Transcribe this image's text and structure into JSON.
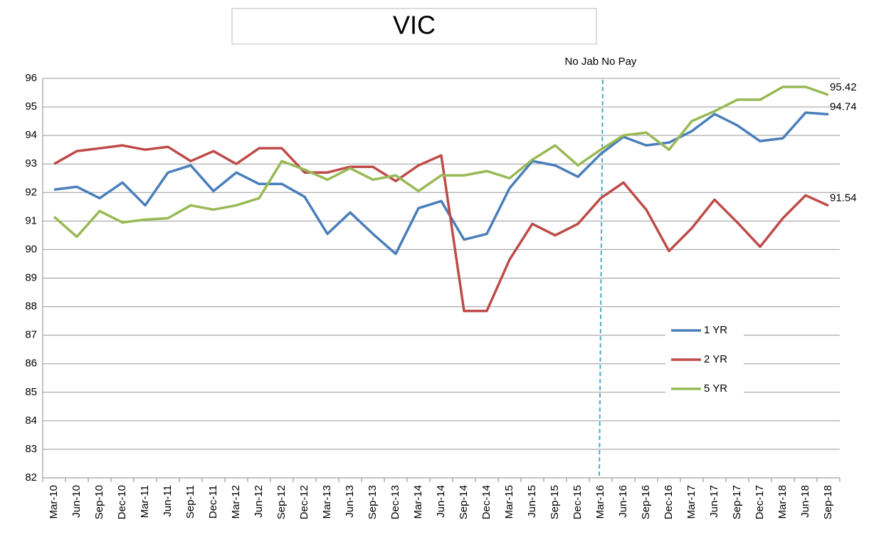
{
  "chart_data": {
    "type": "line",
    "title": "VIC",
    "categories": [
      "Mar-10",
      "Jun-10",
      "Sep-10",
      "Dec-10",
      "Mar-11",
      "Jun-11",
      "Sep-11",
      "Dec-11",
      "Mar-12",
      "Jun-12",
      "Sep-12",
      "Dec-12",
      "Mar-13",
      "Jun-13",
      "Sep-13",
      "Dec-13",
      "Mar-14",
      "Jun-14",
      "Sep-14",
      "Dec-14",
      "Mar-15",
      "Jun-15",
      "Sep-15",
      "Dec-15",
      "Mar-16",
      "Jun-16",
      "Sep-16",
      "Dec-16",
      "Mar-17",
      "Jun-17",
      "Sep-17",
      "Dec-17",
      "Mar-18",
      "Jun-18",
      "Sep-18"
    ],
    "series": [
      {
        "name": "1 YR",
        "color": "#4a7ebb",
        "values": [
          92.1,
          92.2,
          91.8,
          92.35,
          91.55,
          92.7,
          92.95,
          92.05,
          92.7,
          92.3,
          92.3,
          91.85,
          90.55,
          91.3,
          90.55,
          89.85,
          91.45,
          91.7,
          90.35,
          90.55,
          92.15,
          93.1,
          92.95,
          92.55,
          93.35,
          93.95,
          93.65,
          93.75,
          94.15,
          94.75,
          94.35,
          93.8,
          93.9,
          94.8,
          94.74
        ]
      },
      {
        "name": "2 YR",
        "color": "#be4b48",
        "values": [
          93.0,
          93.45,
          93.55,
          93.65,
          93.5,
          93.6,
          93.1,
          93.45,
          93.0,
          93.55,
          93.55,
          92.7,
          92.7,
          92.9,
          92.9,
          92.4,
          92.95,
          93.3,
          87.85,
          87.85,
          89.65,
          90.9,
          90.5,
          90.9,
          91.8,
          92.35,
          91.4,
          89.95,
          90.75,
          91.75,
          90.95,
          90.1,
          91.1,
          91.9,
          91.54
        ]
      },
      {
        "name": "5 YR",
        "color": "#98b954",
        "values": [
          91.15,
          90.45,
          91.35,
          90.95,
          91.05,
          91.1,
          91.55,
          91.4,
          91.55,
          91.8,
          93.1,
          92.8,
          92.45,
          92.85,
          92.45,
          92.6,
          92.05,
          92.6,
          92.6,
          92.75,
          92.5,
          93.15,
          93.65,
          92.95,
          93.5,
          94.0,
          94.1,
          93.5,
          94.5,
          94.85,
          95.25,
          95.25,
          95.7,
          95.7,
          95.42
        ]
      }
    ],
    "ylim": [
      82,
      96
    ],
    "yticks": [
      82,
      83,
      84,
      85,
      86,
      87,
      88,
      89,
      90,
      91,
      92,
      93,
      94,
      95,
      96
    ],
    "grid": true,
    "legend": "right",
    "annotations": [
      {
        "text": "No Jab No Pay",
        "x": "Mar-16"
      }
    ]
  }
}
